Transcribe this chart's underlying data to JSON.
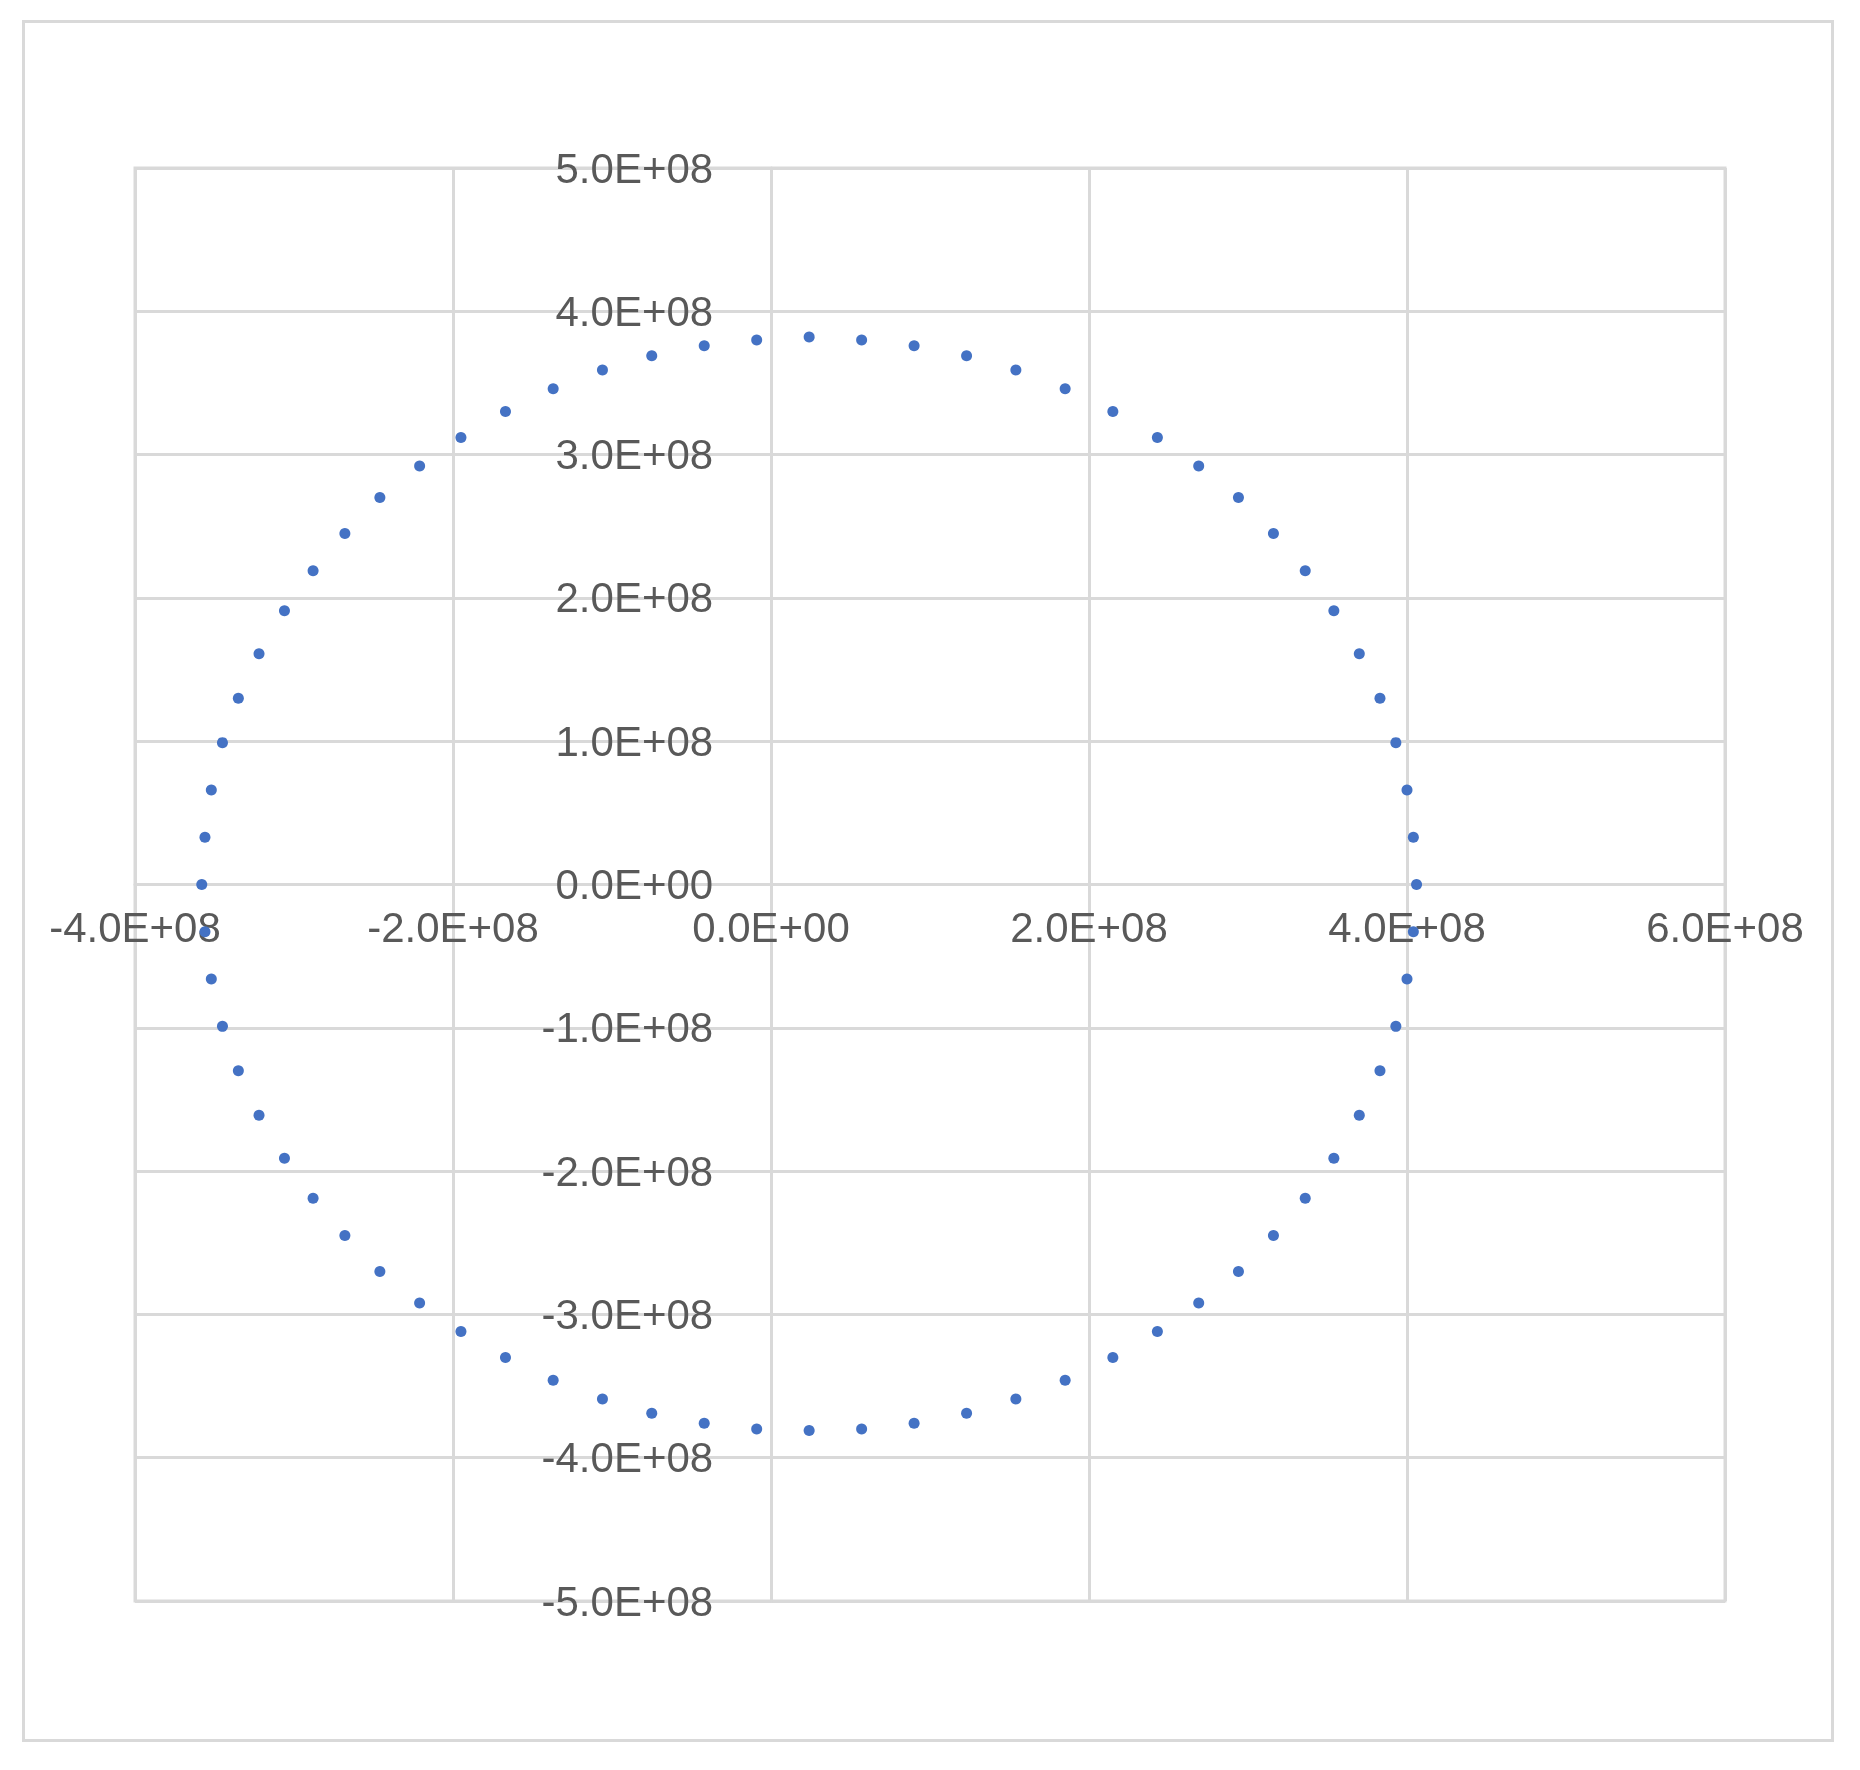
{
  "chart_data": {
    "type": "scatter",
    "marker": "circle",
    "grid": true,
    "series": [
      {
        "color": "#4472c4",
        "x": [
          406000000,
          404000000,
          400000000,
          393000000,
          383000000,
          370000000,
          354000000,
          336000000,
          316000000,
          294000000,
          269000000,
          243000000,
          215000000,
          185000000,
          154000000,
          123000000,
          90000000,
          57000000,
          24000000,
          -9000000,
          -42000000,
          -75000000,
          -106000000,
          -137000000,
          -167000000,
          -195000000,
          -221000000,
          -246000000,
          -268000000,
          -288000000,
          -306000000,
          -322000000,
          -335000000,
          -345000000,
          -352000000,
          -356000000,
          -358000000,
          -356000000,
          -352000000,
          -345000000,
          -335000000,
          -322000000,
          -306000000,
          -288000000,
          -268000000,
          -246000000,
          -221000000,
          -195000000,
          -167000000,
          -137000000,
          -106000000,
          -75000000,
          -42000000,
          -9000000,
          24000000,
          57000000,
          90000000,
          123000000,
          154000000,
          185000000,
          215000000,
          243000000,
          269000000,
          294000000,
          316000000,
          336000000,
          354000000,
          370000000,
          383000000,
          393000000,
          400000000,
          404000000
        ],
        "values": [
          0,
          33000000,
          66000000,
          99000000,
          130000000,
          161000000,
          191000000,
          219000000,
          245000000,
          270000000,
          292000000,
          312000000,
          330000000,
          346000000,
          359000000,
          369000000,
          376000000,
          380000000,
          382000000,
          380000000,
          376000000,
          369000000,
          359000000,
          346000000,
          330000000,
          312000000,
          292000000,
          270000000,
          245000000,
          219000000,
          191000000,
          161000000,
          130000000,
          99000000,
          66000000,
          33000000,
          0,
          -33000000,
          -66000000,
          -99000000,
          -130000000,
          -161000000,
          -191000000,
          -219000000,
          -245000000,
          -270000000,
          -292000000,
          -312000000,
          -330000000,
          -346000000,
          -359000000,
          -369000000,
          -376000000,
          -380000000,
          -381000000,
          -380000000,
          -376000000,
          -369000000,
          -359000000,
          -346000000,
          -330000000,
          -312000000,
          -292000000,
          -270000000,
          -245000000,
          -219000000,
          -191000000,
          -161000000,
          -130000000,
          -99000000,
          -66000000,
          -33000000
        ]
      }
    ],
    "xlim": [
      -400000000,
      600000000
    ],
    "xticks": [
      {
        "value": -400000000,
        "label": "-4.0E+08"
      },
      {
        "value": -200000000,
        "label": "-2.0E+08"
      },
      {
        "value": 0,
        "label": "0.0E+00"
      },
      {
        "value": 200000000,
        "label": "2.0E+08"
      },
      {
        "value": 400000000,
        "label": "4.0E+08"
      },
      {
        "value": 600000000,
        "label": "6.0E+08"
      }
    ],
    "ylim": [
      -500000000,
      500000000
    ],
    "yticks": [
      {
        "value": -500000000,
        "label": "-5.0E+08"
      },
      {
        "value": -400000000,
        "label": "-4.0E+08"
      },
      {
        "value": -300000000,
        "label": "-3.0E+08"
      },
      {
        "value": -200000000,
        "label": "-2.0E+08"
      },
      {
        "value": -100000000,
        "label": "-1.0E+08"
      },
      {
        "value": 0,
        "label": "0.0E+00"
      },
      {
        "value": 100000000,
        "label": "1.0E+08"
      },
      {
        "value": 200000000,
        "label": "2.0E+08"
      },
      {
        "value": 300000000,
        "label": "3.0E+08"
      },
      {
        "value": 400000000,
        "label": "4.0E+08"
      },
      {
        "value": 500000000,
        "label": "5.0E+08"
      }
    ]
  }
}
